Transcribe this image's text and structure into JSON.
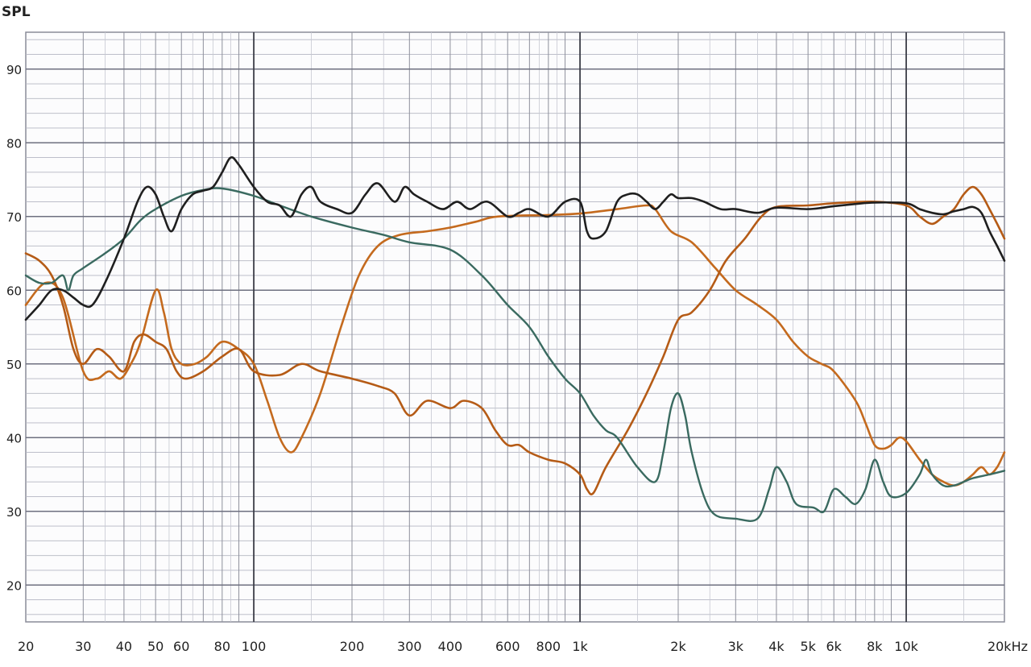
{
  "chart_data": {
    "type": "line",
    "ylabel": "SPL",
    "xscale": "log",
    "xlim": [
      20,
      20000
    ],
    "ylim": [
      15,
      95
    ],
    "grid": true,
    "x_ticks": [
      {
        "v": 20,
        "label": "20"
      },
      {
        "v": 30,
        "label": "30"
      },
      {
        "v": 40,
        "label": "40"
      },
      {
        "v": 50,
        "label": "50"
      },
      {
        "v": 60,
        "label": "60"
      },
      {
        "v": 80,
        "label": "80"
      },
      {
        "v": 100,
        "label": "100"
      },
      {
        "v": 200,
        "label": "200"
      },
      {
        "v": 300,
        "label": "300"
      },
      {
        "v": 400,
        "label": "400"
      },
      {
        "v": 600,
        "label": "600"
      },
      {
        "v": 800,
        "label": "800"
      },
      {
        "v": 1000,
        "label": "1k"
      },
      {
        "v": 2000,
        "label": "2k"
      },
      {
        "v": 3000,
        "label": "3k"
      },
      {
        "v": 4000,
        "label": "4k"
      },
      {
        "v": 5000,
        "label": "5k"
      },
      {
        "v": 6000,
        "label": "6k"
      },
      {
        "v": 8000,
        "label": "8k"
      },
      {
        "v": 10000,
        "label": "10k"
      },
      {
        "v": 20000,
        "label": "20kHz"
      }
    ],
    "y_ticks": [
      {
        "v": 90,
        "label": "90"
      },
      {
        "v": 80,
        "label": "80"
      },
      {
        "v": 70,
        "label": "70"
      },
      {
        "v": 60,
        "label": "60"
      },
      {
        "v": 50,
        "label": "50"
      },
      {
        "v": 40,
        "label": "40"
      },
      {
        "v": 30,
        "label": "30"
      },
      {
        "v": 20,
        "label": "20"
      }
    ],
    "series": [
      {
        "color": "#c46a1e",
        "width": 2.6,
        "points": [
          [
            20,
            58
          ],
          [
            23,
            61
          ],
          [
            26,
            59
          ],
          [
            30,
            49
          ],
          [
            33,
            48
          ],
          [
            36,
            49
          ],
          [
            39,
            48
          ],
          [
            42,
            50
          ],
          [
            45,
            53
          ],
          [
            50,
            60
          ],
          [
            53,
            57
          ],
          [
            56,
            52
          ],
          [
            60,
            50
          ],
          [
            66,
            50
          ],
          [
            72,
            51
          ],
          [
            80,
            53
          ],
          [
            90,
            52
          ],
          [
            100,
            50
          ],
          [
            110,
            45
          ],
          [
            120,
            40
          ],
          [
            130,
            38
          ],
          [
            140,
            40
          ],
          [
            160,
            46
          ],
          [
            185,
            55
          ],
          [
            210,
            62
          ],
          [
            240,
            66
          ],
          [
            280,
            67.5
          ],
          [
            340,
            68
          ],
          [
            400,
            68.5
          ],
          [
            480,
            69.3
          ],
          [
            560,
            70
          ],
          [
            800,
            70.2
          ],
          [
            1000,
            70.4
          ],
          [
            1300,
            71
          ],
          [
            1600,
            71.5
          ],
          [
            1700,
            71
          ],
          [
            1900,
            68
          ],
          [
            2200,
            66.5
          ],
          [
            2600,
            63
          ],
          [
            3000,
            60
          ],
          [
            3500,
            58
          ],
          [
            4000,
            56
          ],
          [
            4500,
            53
          ],
          [
            5000,
            51
          ],
          [
            5500,
            50
          ],
          [
            6000,
            49
          ],
          [
            7000,
            45
          ],
          [
            7500,
            42
          ],
          [
            8000,
            39
          ],
          [
            8500,
            38.5
          ],
          [
            9000,
            39
          ],
          [
            9500,
            40
          ],
          [
            10000,
            39.5
          ],
          [
            11000,
            37
          ],
          [
            12000,
            35
          ],
          [
            13000,
            34
          ],
          [
            14000,
            33.5
          ],
          [
            15000,
            34
          ],
          [
            16000,
            35
          ],
          [
            17000,
            36
          ],
          [
            18000,
            35
          ],
          [
            19000,
            36
          ],
          [
            20000,
            38
          ]
        ]
      },
      {
        "color": "#b55b16",
        "width": 2.6,
        "points": [
          [
            20,
            65
          ],
          [
            22,
            64
          ],
          [
            24,
            62
          ],
          [
            26,
            58
          ],
          [
            28,
            52
          ],
          [
            30,
            50
          ],
          [
            33,
            52
          ],
          [
            36,
            51
          ],
          [
            40,
            49
          ],
          [
            43,
            53
          ],
          [
            46,
            54
          ],
          [
            50,
            53
          ],
          [
            54,
            52
          ],
          [
            58,
            49
          ],
          [
            62,
            48
          ],
          [
            70,
            49
          ],
          [
            80,
            51
          ],
          [
            90,
            52
          ],
          [
            100,
            49
          ],
          [
            120,
            48.5
          ],
          [
            140,
            50
          ],
          [
            160,
            49
          ],
          [
            200,
            48
          ],
          [
            240,
            47
          ],
          [
            270,
            46
          ],
          [
            300,
            43
          ],
          [
            340,
            45
          ],
          [
            400,
            44
          ],
          [
            440,
            45
          ],
          [
            500,
            44
          ],
          [
            550,
            41
          ],
          [
            600,
            39
          ],
          [
            650,
            39
          ],
          [
            700,
            38
          ],
          [
            800,
            37
          ],
          [
            900,
            36.5
          ],
          [
            1000,
            35
          ],
          [
            1050,
            33
          ],
          [
            1100,
            32.5
          ],
          [
            1200,
            36
          ],
          [
            1400,
            41
          ],
          [
            1600,
            46
          ],
          [
            1800,
            51
          ],
          [
            2000,
            56
          ],
          [
            2200,
            57
          ],
          [
            2500,
            60
          ],
          [
            2800,
            64
          ],
          [
            3200,
            67
          ],
          [
            3600,
            70
          ],
          [
            4000,
            71.3
          ],
          [
            5000,
            71.5
          ],
          [
            6000,
            71.8
          ],
          [
            8000,
            72
          ],
          [
            10000,
            71.5
          ],
          [
            11000,
            70
          ],
          [
            12000,
            69
          ],
          [
            13000,
            70
          ],
          [
            14000,
            71
          ],
          [
            15000,
            73
          ],
          [
            16000,
            74
          ],
          [
            17000,
            73
          ],
          [
            18000,
            71
          ],
          [
            19000,
            69
          ],
          [
            20000,
            67
          ]
        ]
      },
      {
        "color": "#3a6a60",
        "width": 2.4,
        "points": [
          [
            20,
            62
          ],
          [
            22,
            61
          ],
          [
            24,
            61
          ],
          [
            26,
            62
          ],
          [
            27,
            60
          ],
          [
            28,
            62
          ],
          [
            30,
            63
          ],
          [
            35,
            65
          ],
          [
            40,
            67
          ],
          [
            45,
            69.5
          ],
          [
            50,
            71
          ],
          [
            60,
            72.8
          ],
          [
            70,
            73.6
          ],
          [
            80,
            73.8
          ],
          [
            100,
            72.8
          ],
          [
            120,
            71.5
          ],
          [
            150,
            70
          ],
          [
            200,
            68.5
          ],
          [
            250,
            67.5
          ],
          [
            300,
            66.5
          ],
          [
            400,
            65.5
          ],
          [
            500,
            62
          ],
          [
            600,
            58
          ],
          [
            700,
            55
          ],
          [
            800,
            51
          ],
          [
            900,
            48
          ],
          [
            1000,
            46
          ],
          [
            1100,
            43
          ],
          [
            1200,
            41
          ],
          [
            1300,
            40
          ],
          [
            1500,
            36
          ],
          [
            1700,
            34
          ],
          [
            1800,
            38
          ],
          [
            1900,
            44
          ],
          [
            2000,
            46
          ],
          [
            2100,
            43
          ],
          [
            2200,
            38
          ],
          [
            2400,
            32
          ],
          [
            2600,
            29.5
          ],
          [
            3000,
            29
          ],
          [
            3500,
            29
          ],
          [
            3800,
            33
          ],
          [
            4000,
            36
          ],
          [
            4300,
            34
          ],
          [
            4600,
            31
          ],
          [
            5200,
            30.5
          ],
          [
            5600,
            30
          ],
          [
            6000,
            33
          ],
          [
            6500,
            32
          ],
          [
            7000,
            31
          ],
          [
            7500,
            33
          ],
          [
            8000,
            37
          ],
          [
            8500,
            34
          ],
          [
            9000,
            32
          ],
          [
            10000,
            32.5
          ],
          [
            11000,
            35
          ],
          [
            11500,
            37
          ],
          [
            12000,
            35
          ],
          [
            13000,
            33.5
          ],
          [
            14000,
            33.5
          ],
          [
            15000,
            34
          ],
          [
            16000,
            34.5
          ],
          [
            18000,
            35
          ],
          [
            20000,
            35.5
          ]
        ]
      },
      {
        "color": "#1f1f1f",
        "width": 2.6,
        "points": [
          [
            20,
            56
          ],
          [
            22,
            58
          ],
          [
            24,
            60
          ],
          [
            26,
            60
          ],
          [
            28,
            59
          ],
          [
            30,
            58
          ],
          [
            32,
            58
          ],
          [
            35,
            61
          ],
          [
            40,
            67
          ],
          [
            44,
            72
          ],
          [
            47,
            74
          ],
          [
            50,
            73
          ],
          [
            53,
            70
          ],
          [
            56,
            68
          ],
          [
            60,
            71
          ],
          [
            65,
            73
          ],
          [
            70,
            73.5
          ],
          [
            75,
            74
          ],
          [
            80,
            76
          ],
          [
            85,
            78
          ],
          [
            90,
            77
          ],
          [
            100,
            74
          ],
          [
            110,
            72
          ],
          [
            120,
            71.5
          ],
          [
            130,
            70
          ],
          [
            140,
            73
          ],
          [
            150,
            74
          ],
          [
            160,
            72
          ],
          [
            180,
            71
          ],
          [
            200,
            70.5
          ],
          [
            220,
            73
          ],
          [
            240,
            74.5
          ],
          [
            270,
            72
          ],
          [
            290,
            74
          ],
          [
            310,
            73
          ],
          [
            340,
            72
          ],
          [
            380,
            71
          ],
          [
            420,
            72
          ],
          [
            460,
            71
          ],
          [
            520,
            72
          ],
          [
            600,
            70
          ],
          [
            650,
            70.5
          ],
          [
            700,
            71
          ],
          [
            800,
            70
          ],
          [
            900,
            72
          ],
          [
            1000,
            72
          ],
          [
            1050,
            68
          ],
          [
            1100,
            67
          ],
          [
            1200,
            68
          ],
          [
            1300,
            72
          ],
          [
            1400,
            73
          ],
          [
            1500,
            73
          ],
          [
            1600,
            72
          ],
          [
            1700,
            71
          ],
          [
            1800,
            72
          ],
          [
            1900,
            73
          ],
          [
            2000,
            72.5
          ],
          [
            2200,
            72.5
          ],
          [
            2400,
            72
          ],
          [
            2700,
            71
          ],
          [
            3000,
            71
          ],
          [
            3500,
            70.5
          ],
          [
            4000,
            71.2
          ],
          [
            5000,
            71
          ],
          [
            6000,
            71.4
          ],
          [
            7000,
            71.7
          ],
          [
            8000,
            71.9
          ],
          [
            10000,
            71.8
          ],
          [
            11000,
            71
          ],
          [
            12000,
            70.5
          ],
          [
            13000,
            70.3
          ],
          [
            14000,
            70.7
          ],
          [
            15000,
            71
          ],
          [
            16000,
            71.3
          ],
          [
            17000,
            70.5
          ],
          [
            18000,
            68
          ],
          [
            19000,
            66
          ],
          [
            20000,
            64
          ]
        ]
      }
    ]
  }
}
